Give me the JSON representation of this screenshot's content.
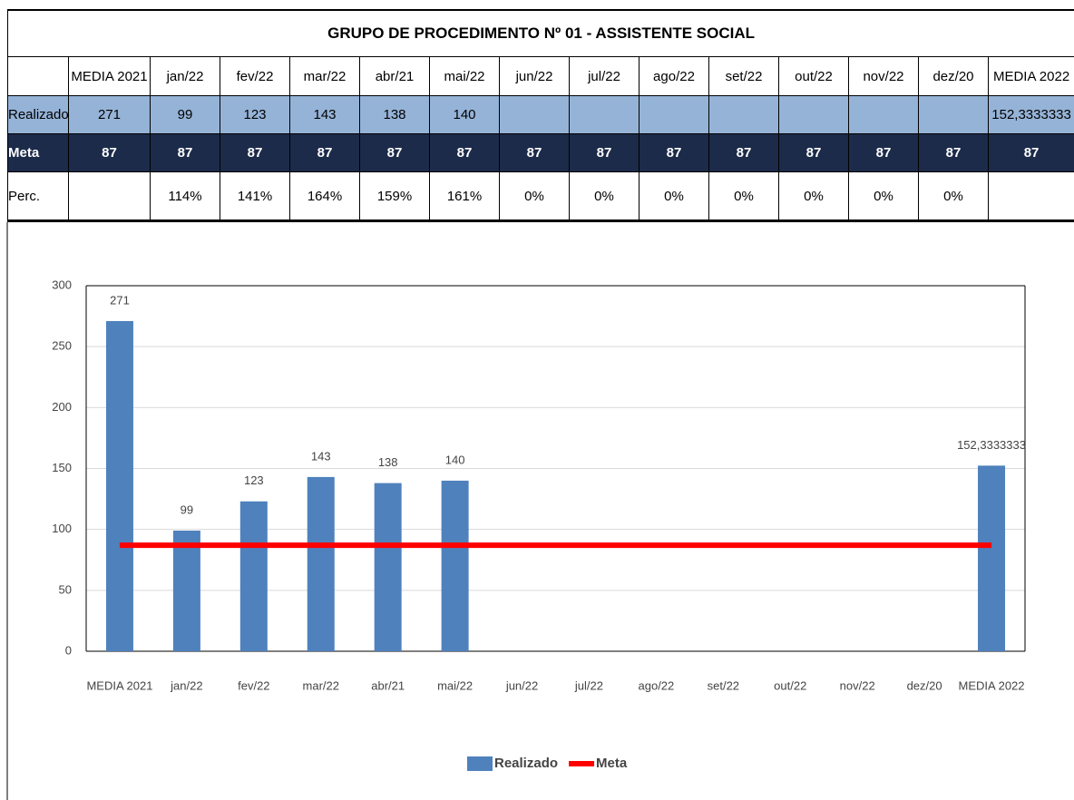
{
  "table": {
    "title": "GRUPO DE PROCEDIMENTO Nº 01 - ASSISTENTE SOCIAL",
    "header": [
      "MEDIA 2021",
      "jan/22",
      "fev/22",
      "mar/22",
      "abr/21",
      "mai/22",
      "jun/22",
      "jul/22",
      "ago/22",
      "set/22",
      "out/22",
      "nov/22",
      "dez/20",
      "MEDIA 2022"
    ],
    "rows": [
      {
        "label": "Realizado",
        "cells": [
          "271",
          "99",
          "123",
          "143",
          "138",
          "140",
          null,
          null,
          null,
          null,
          null,
          null,
          null,
          "152,3333333"
        ]
      },
      {
        "label": "Meta",
        "cells": [
          "87",
          "87",
          "87",
          "87",
          "87",
          "87",
          "87",
          "87",
          "87",
          "87",
          "87",
          "87",
          "87",
          "87"
        ]
      },
      {
        "label": "Perc.",
        "cells": [
          null,
          "114%",
          "141%",
          "164%",
          "159%",
          "161%",
          "0%",
          "0%",
          "0%",
          "0%",
          "0%",
          "0%",
          "0%",
          null
        ]
      }
    ]
  },
  "chart_data": {
    "type": "bar",
    "categories": [
      "MEDIA 2021",
      "jan/22",
      "fev/22",
      "mar/22",
      "abr/21",
      "mai/22",
      "jun/22",
      "jul/22",
      "ago/22",
      "set/22",
      "out/22",
      "nov/22",
      "dez/20",
      "MEDIA 2022"
    ],
    "series": [
      {
        "name": "Realizado",
        "type": "bar",
        "color": "#4f81bd",
        "values": [
          271,
          99,
          123,
          143,
          138,
          140,
          null,
          null,
          null,
          null,
          null,
          null,
          null,
          152.3333333
        ],
        "value_labels": [
          null,
          null,
          null,
          null,
          null,
          null,
          null,
          null,
          null,
          null,
          null,
          null,
          null,
          "152,3333333"
        ]
      },
      {
        "name": "Meta",
        "type": "line",
        "color": "#ff0000",
        "values": [
          87,
          87,
          87,
          87,
          87,
          87,
          87,
          87,
          87,
          87,
          87,
          87,
          87,
          87
        ]
      }
    ],
    "ylim": [
      0,
      300
    ],
    "yticks": [
      0,
      50,
      100,
      150,
      200,
      250,
      300
    ],
    "grid": true,
    "legend": "bottom"
  }
}
